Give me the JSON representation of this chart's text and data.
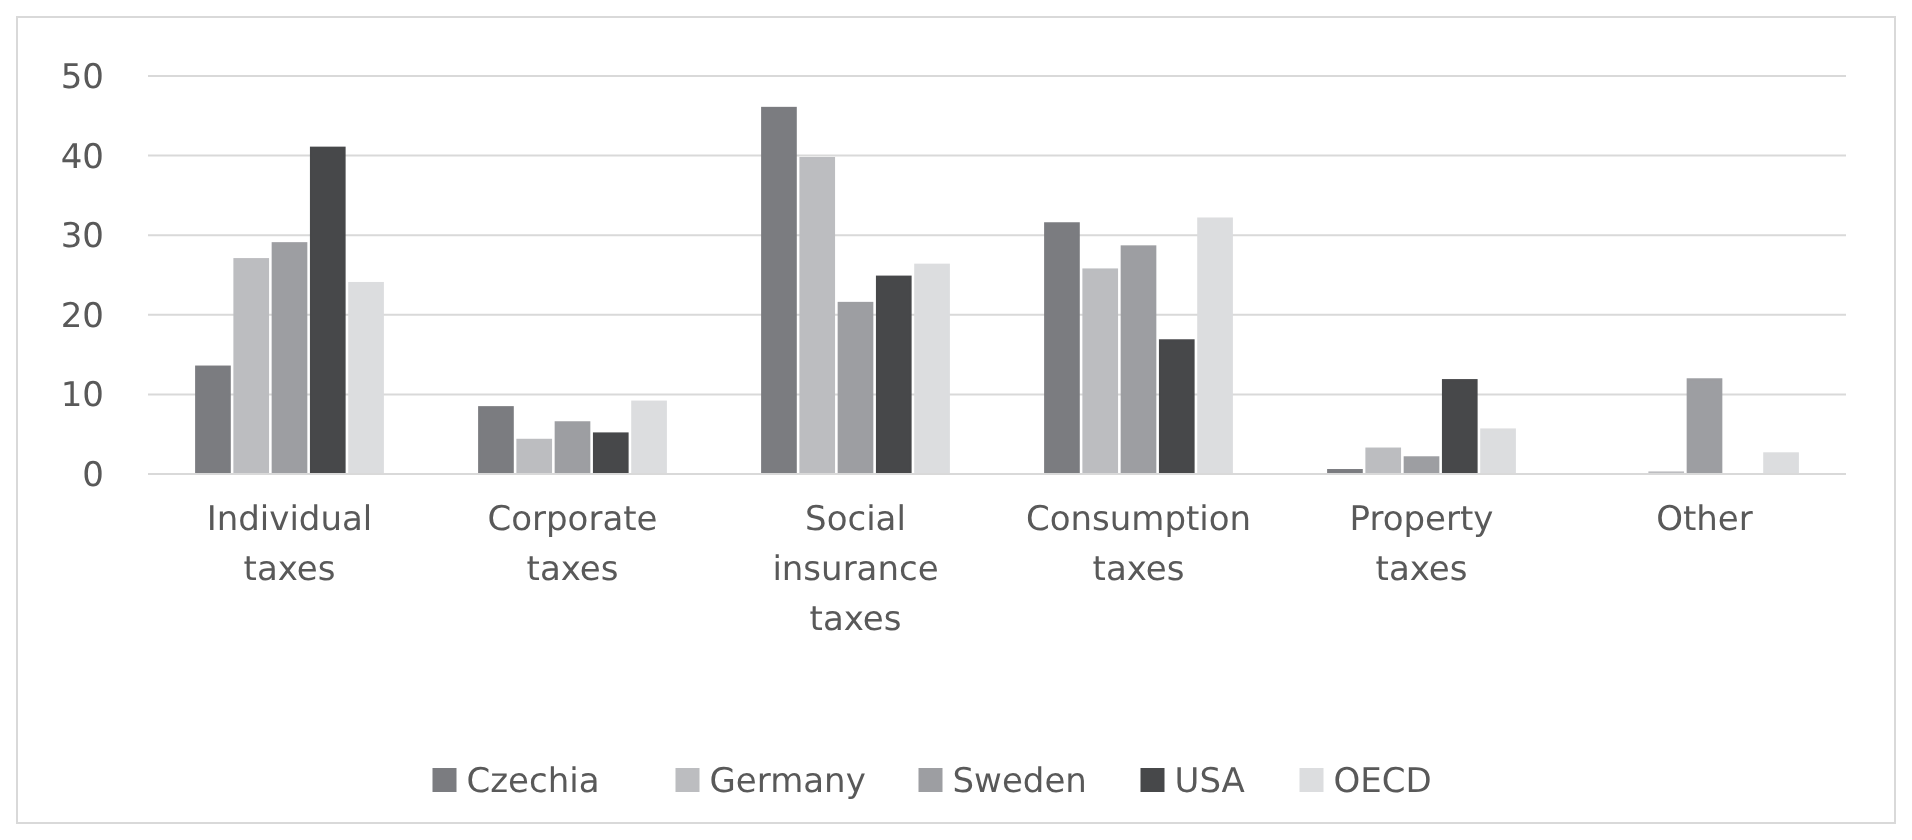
{
  "chart_data": {
    "type": "bar",
    "categories": [
      "Individual taxes",
      "Corporate taxes",
      "Social insurance taxes",
      "Consumption taxes",
      "Property taxes",
      "Other"
    ],
    "series": [
      {
        "name": "Czechia",
        "color": "#7b7c80",
        "values": [
          13.5,
          8.4,
          46,
          31.5,
          0.5,
          null
        ]
      },
      {
        "name": "Germany",
        "color": "#bcbdc0",
        "values": [
          27,
          4.3,
          39.7,
          25.7,
          3.2,
          0.2
        ]
      },
      {
        "name": "Sweden",
        "color": "#9d9ea2",
        "values": [
          29,
          6.5,
          21.5,
          28.6,
          2.1,
          11.9
        ]
      },
      {
        "name": "USA",
        "color": "#47484a",
        "values": [
          41,
          5.1,
          24.8,
          16.8,
          11.8,
          null
        ]
      },
      {
        "name": "OECD",
        "color": "#dcdddf",
        "values": [
          24,
          9.1,
          26.3,
          32.1,
          5.6,
          2.6
        ]
      }
    ],
    "ylim": [
      0,
      50
    ],
    "yticks": [
      0,
      10,
      20,
      30,
      40,
      50
    ],
    "grid": "y",
    "legend": "bottom"
  }
}
